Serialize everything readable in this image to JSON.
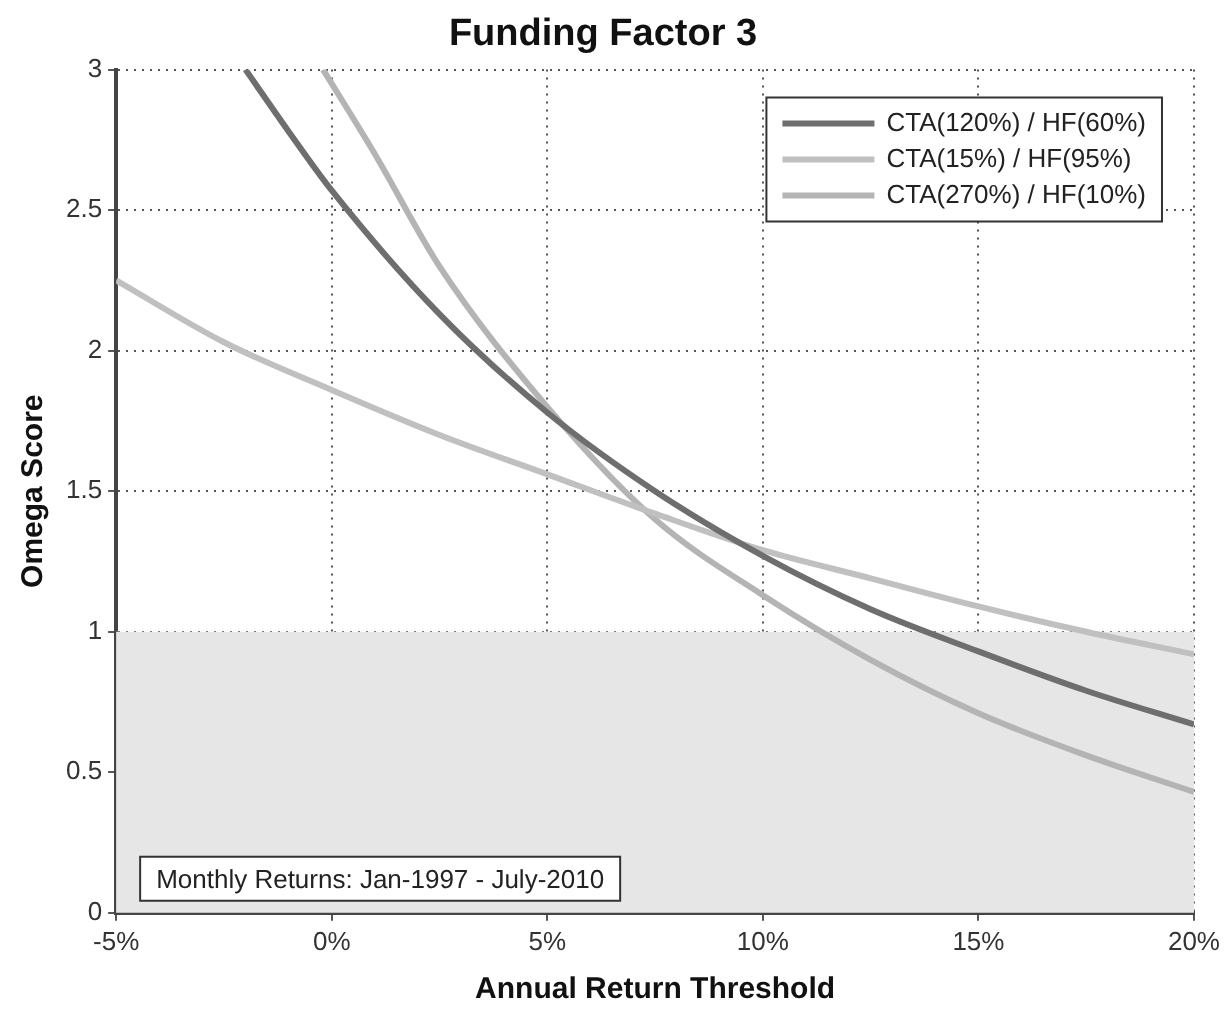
{
  "chart_data": {
    "type": "line",
    "title": "Funding Factor 3",
    "xlabel": "Annual Return Threshold",
    "ylabel": "Omega Score",
    "xlim": [
      -5,
      20
    ],
    "xticks": [
      {
        "value": -5,
        "label": "-5%"
      },
      {
        "value": 0,
        "label": "0%"
      },
      {
        "value": 5,
        "label": "5%"
      },
      {
        "value": 10,
        "label": "10%"
      },
      {
        "value": 15,
        "label": "15%"
      },
      {
        "value": 20,
        "label": "20%"
      }
    ],
    "ylim": [
      0,
      3
    ],
    "yticks": [
      0,
      0.5,
      1,
      1.5,
      2,
      2.5,
      3
    ],
    "grid": true,
    "legend": "top right",
    "marker": "none",
    "line_style": "solid",
    "bands": [
      {
        "axis": "y",
        "from": 0,
        "to": 1,
        "color": "#e6e6e6"
      }
    ],
    "annotations": [
      "Monthly Returns: Jan-1997 - July-2010"
    ],
    "series": [
      {
        "name": "CTA(120%) / HF(60%)",
        "color": "#6e6e6e",
        "x": [
          -2,
          -1,
          0,
          2.5,
          5,
          7.5,
          10,
          12.5,
          15,
          17.5,
          20
        ],
        "values": [
          3.0,
          2.78,
          2.57,
          2.13,
          1.78,
          1.5,
          1.27,
          1.08,
          0.93,
          0.79,
          0.67
        ]
      },
      {
        "name": "CTA(15%) / HF(95%)",
        "color": "#c0c0c0",
        "x": [
          -5,
          -2.5,
          0,
          2.5,
          5,
          7.5,
          10,
          12.5,
          15,
          17.5,
          20
        ],
        "values": [
          2.25,
          2.03,
          1.86,
          1.7,
          1.56,
          1.42,
          1.29,
          1.19,
          1.09,
          1.0,
          0.92
        ]
      },
      {
        "name": "CTA(270%) / HF(10%)",
        "color": "#b4b4b4",
        "x": [
          -0.2,
          1,
          2.5,
          5,
          7.5,
          10,
          12.5,
          15,
          17.5,
          20
        ],
        "values": [
          3.0,
          2.7,
          2.3,
          1.8,
          1.4,
          1.13,
          0.9,
          0.71,
          0.56,
          0.43
        ]
      }
    ]
  }
}
